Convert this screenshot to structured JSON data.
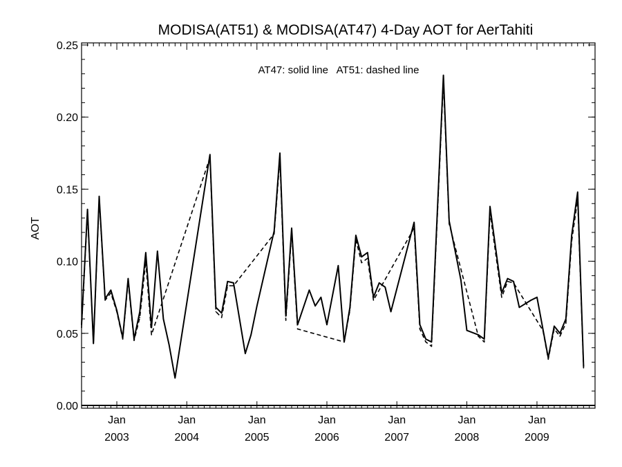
{
  "chart_data": {
    "type": "line",
    "title": "MODISA(AT51) & MODISA(AT47) 4-Day AOT for AerTahiti",
    "annotation": "AT47: solid line   AT51: dashed line",
    "xlabel": "",
    "ylabel": "AOT",
    "ylim": [
      0.0,
      0.25
    ],
    "xlim": [
      "2002-07-01",
      "2009-10-31"
    ],
    "grid": false,
    "y_ticks": [
      "0.00",
      "0.05",
      "0.10",
      "0.15",
      "0.20",
      "0.25"
    ],
    "x_ticks": [
      {
        "month": "Jan",
        "year": "2003",
        "date": "2003-01-01"
      },
      {
        "month": "Jan",
        "year": "2004",
        "date": "2004-01-01"
      },
      {
        "month": "Jan",
        "year": "2005",
        "date": "2005-01-01"
      },
      {
        "month": "Jan",
        "year": "2006",
        "date": "2006-01-01"
      },
      {
        "month": "Jan",
        "year": "2007",
        "date": "2007-01-01"
      },
      {
        "month": "Jan",
        "year": "2008",
        "date": "2008-01-01"
      },
      {
        "month": "Jan",
        "year": "2009",
        "date": "2009-01-01"
      }
    ],
    "series": [
      {
        "name": "AT47",
        "style": "solid",
        "color": "#000000",
        "points": [
          [
            "2002-07-01",
            0.056
          ],
          [
            "2002-08-01",
            0.136
          ],
          [
            "2002-09-01",
            0.043
          ],
          [
            "2002-10-01",
            0.145
          ],
          [
            "2002-11-01",
            0.074
          ],
          [
            "2002-12-01",
            0.08
          ],
          [
            "2003-01-01",
            0.066
          ],
          [
            "2003-02-01",
            0.047
          ],
          [
            "2003-03-01",
            0.088
          ],
          [
            "2003-04-01",
            0.046
          ],
          [
            "2003-05-01",
            0.065
          ],
          [
            "2003-06-01",
            0.106
          ],
          [
            "2003-07-01",
            0.054
          ],
          [
            "2003-08-01",
            0.107
          ],
          [
            "2003-09-01",
            0.06
          ],
          [
            "2003-10-01",
            0.042
          ],
          [
            "2003-11-01",
            0.019
          ],
          [
            "2004-05-01",
            0.174
          ],
          [
            "2004-06-01",
            0.068
          ],
          [
            "2004-07-01",
            0.064
          ],
          [
            "2004-08-01",
            0.086
          ],
          [
            "2004-09-01",
            0.085
          ],
          [
            "2004-11-01",
            0.036
          ],
          [
            "2004-12-01",
            0.049
          ],
          [
            "2005-01-01",
            0.069
          ],
          [
            "2005-04-01",
            0.121
          ],
          [
            "2005-05-01",
            0.175
          ],
          [
            "2005-06-01",
            0.062
          ],
          [
            "2005-07-01",
            0.123
          ],
          [
            "2005-08-01",
            0.056
          ],
          [
            "2005-10-01",
            0.08
          ],
          [
            "2005-11-01",
            0.069
          ],
          [
            "2005-12-01",
            0.075
          ],
          [
            "2006-01-01",
            0.056
          ],
          [
            "2006-03-01",
            0.097
          ],
          [
            "2006-04-01",
            0.044
          ],
          [
            "2006-05-01",
            0.068
          ],
          [
            "2006-06-01",
            0.118
          ],
          [
            "2006-07-01",
            0.103
          ],
          [
            "2006-08-01",
            0.106
          ],
          [
            "2006-09-01",
            0.075
          ],
          [
            "2006-10-01",
            0.085
          ],
          [
            "2006-11-01",
            0.082
          ],
          [
            "2006-12-01",
            0.065
          ],
          [
            "2007-04-01",
            0.127
          ],
          [
            "2007-05-01",
            0.056
          ],
          [
            "2007-06-01",
            0.046
          ],
          [
            "2007-07-01",
            0.044
          ],
          [
            "2007-09-01",
            0.229
          ],
          [
            "2007-10-01",
            0.128
          ],
          [
            "2007-12-01",
            0.087
          ],
          [
            "2008-01-01",
            0.052
          ],
          [
            "2008-03-01",
            0.049
          ],
          [
            "2008-04-01",
            0.046
          ],
          [
            "2008-05-01",
            0.138
          ],
          [
            "2008-07-01",
            0.078
          ],
          [
            "2008-08-01",
            0.088
          ],
          [
            "2008-09-01",
            0.086
          ],
          [
            "2008-10-01",
            0.068
          ],
          [
            "2008-12-01",
            0.073
          ],
          [
            "2009-01-01",
            0.075
          ],
          [
            "2009-03-01",
            0.033
          ],
          [
            "2009-04-01",
            0.055
          ],
          [
            "2009-05-01",
            0.05
          ],
          [
            "2009-06-01",
            0.06
          ],
          [
            "2009-07-01",
            0.118
          ],
          [
            "2009-08-01",
            0.148
          ],
          [
            "2009-09-01",
            0.027
          ]
        ]
      },
      {
        "name": "AT51",
        "style": "dashed",
        "color": "#000000",
        "points": [
          [
            "2002-07-01",
            0.054
          ],
          [
            "2002-08-01",
            0.134
          ],
          [
            "2002-09-01",
            0.043
          ],
          [
            "2002-10-01",
            0.143
          ],
          [
            "2002-11-01",
            0.073
          ],
          [
            "2002-12-01",
            0.078
          ],
          [
            "2003-01-01",
            0.065
          ],
          [
            "2003-02-01",
            0.046
          ],
          [
            "2003-03-01",
            0.086
          ],
          [
            "2003-04-01",
            0.045
          ],
          [
            "2003-05-01",
            0.061
          ],
          [
            "2003-06-01",
            0.1
          ],
          [
            "2003-07-01",
            0.049
          ],
          [
            "2004-05-01",
            0.172
          ],
          [
            "2004-06-01",
            0.065
          ],
          [
            "2004-07-01",
            0.061
          ],
          [
            "2004-08-01",
            0.083
          ],
          [
            "2004-09-01",
            0.083
          ],
          [
            "2005-04-01",
            0.119
          ],
          [
            "2005-05-01",
            0.171
          ],
          [
            "2005-06-01",
            0.059
          ],
          [
            "2005-07-01",
            0.12
          ],
          [
            "2005-08-01",
            0.053
          ],
          [
            "2006-04-01",
            0.044
          ],
          [
            "2006-05-01",
            0.066
          ],
          [
            "2006-06-01",
            0.115
          ],
          [
            "2006-07-01",
            0.099
          ],
          [
            "2006-08-01",
            0.102
          ],
          [
            "2006-09-01",
            0.073
          ],
          [
            "2007-04-01",
            0.123
          ],
          [
            "2007-05-01",
            0.053
          ],
          [
            "2007-06-01",
            0.044
          ],
          [
            "2007-07-01",
            0.041
          ],
          [
            "2007-09-01",
            0.225
          ],
          [
            "2007-10-01",
            0.126
          ],
          [
            "2008-03-01",
            0.048
          ],
          [
            "2008-04-01",
            0.044
          ],
          [
            "2008-05-01",
            0.134
          ],
          [
            "2008-07-01",
            0.075
          ],
          [
            "2008-08-01",
            0.086
          ],
          [
            "2008-09-01",
            0.085
          ],
          [
            "2009-02-01",
            0.052
          ],
          [
            "2009-03-01",
            0.032
          ],
          [
            "2009-04-01",
            0.053
          ],
          [
            "2009-05-01",
            0.048
          ],
          [
            "2009-06-01",
            0.057
          ],
          [
            "2009-07-01",
            0.114
          ],
          [
            "2009-08-01",
            0.143
          ],
          [
            "2009-09-01",
            0.026
          ]
        ]
      }
    ]
  }
}
